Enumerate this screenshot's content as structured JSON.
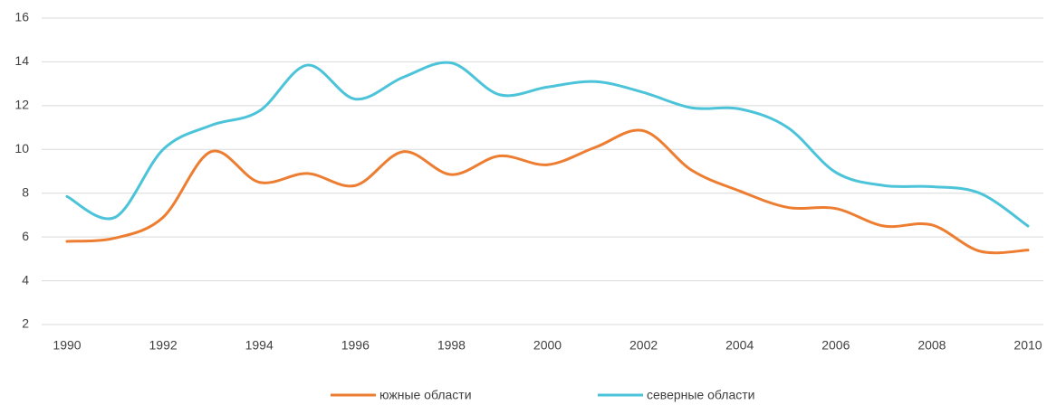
{
  "chart_data": {
    "type": "line",
    "x": [
      1990,
      1991,
      1992,
      1993,
      1994,
      1995,
      1996,
      1997,
      1998,
      1999,
      2000,
      2001,
      2002,
      2003,
      2004,
      2005,
      2006,
      2007,
      2008,
      2009,
      2010
    ],
    "series": [
      {
        "name": "южные области",
        "color": "#ed7d31",
        "values": [
          5.8,
          5.95,
          6.9,
          9.9,
          8.5,
          8.9,
          8.35,
          9.9,
          8.85,
          9.7,
          9.3,
          10.1,
          10.85,
          9.05,
          8.1,
          7.35,
          7.3,
          6.5,
          6.55,
          5.35,
          5.4
        ]
      },
      {
        "name": "северные области",
        "color": "#4bc3d8",
        "values": [
          7.85,
          6.9,
          10.0,
          11.1,
          11.75,
          13.85,
          12.3,
          13.3,
          13.95,
          12.5,
          12.85,
          13.1,
          12.6,
          11.9,
          11.85,
          11.0,
          8.95,
          8.35,
          8.3,
          8.0,
          6.5
        ]
      }
    ],
    "xlim": [
      1990,
      2010
    ],
    "xticks": [
      1990,
      1992,
      1994,
      1996,
      1998,
      2000,
      2002,
      2004,
      2006,
      2008,
      2010
    ],
    "ylim": [
      2,
      16
    ],
    "yticks": [
      2,
      4,
      6,
      8,
      10,
      12,
      14,
      16
    ],
    "grid": true,
    "smooth": true,
    "legend": "bottom"
  }
}
